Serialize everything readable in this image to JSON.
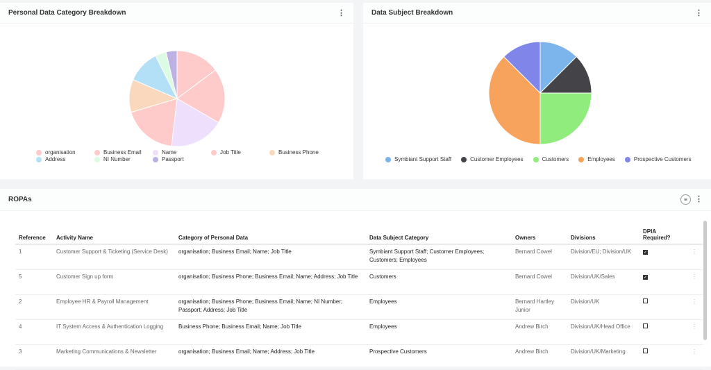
{
  "left_card": {
    "title": "Personal Data Category Breakdown"
  },
  "right_card": {
    "title": "Data Subject Breakdown"
  },
  "chart_data": [
    {
      "type": "pie",
      "title": "Personal Data Category Breakdown",
      "categories": [
        "organisation",
        "Business Email",
        "Name",
        "Job Title",
        "Business Phone",
        "Address",
        "NI Number",
        "Passport"
      ],
      "values": [
        4,
        5,
        5,
        5,
        3,
        3,
        1,
        1
      ],
      "colors": [
        "#fecaca",
        "#fecaca",
        "#eedffc",
        "#fecaca",
        "#fad8bd",
        "#b3e0f7",
        "#dcfbe3",
        "#bdb0e3"
      ],
      "legend": "bottom"
    },
    {
      "type": "pie",
      "title": "Data Subject Breakdown",
      "categories": [
        "Symbiant Support Staff",
        "Customer Employees",
        "Customers",
        "Employees",
        "Prospective Customers"
      ],
      "values": [
        1,
        1,
        2,
        3,
        1
      ],
      "colors": [
        "#7cb5ec",
        "#434348",
        "#90ed7d",
        "#f7a35c",
        "#8085e9"
      ],
      "legend": "bottom"
    }
  ],
  "ropa": {
    "title": "ROPAs",
    "columns": [
      "Reference",
      "Activity Name",
      "Category of Personal Data",
      "Data Subject Category",
      "Owners",
      "Divisions",
      "DPIA Required?"
    ],
    "rows": [
      {
        "ref": "1",
        "activity": "Customer Support & Ticketing (Service Desk)",
        "category": "organisation; Business Email; Name; Job Title",
        "subject": "Symbiant Support Staff; Customer Employees; Customers; Employees",
        "owners": "Bernard Cowel",
        "divisions": "Division/EU; Division/UK",
        "dpia": true
      },
      {
        "ref": "5",
        "activity": "Customer Sign up form",
        "category": "organisation; Business Phone; Business Email; Name; Address; Job Title",
        "subject": "Customers",
        "owners": "Bernard Cowel",
        "divisions": "Division/UK/Sales",
        "dpia": true
      },
      {
        "ref": "2",
        "activity": "Employee HR & Payroll Management",
        "category": "organisation; Business Phone; Business Email; Name; NI Number; Passport; Address; Job Title",
        "subject": "Employees",
        "owners": "Bernard Hartley Junior",
        "divisions": "Division/UK",
        "dpia": false
      },
      {
        "ref": "4",
        "activity": "IT System Access & Authentication Logging",
        "category": "Business Phone; Business Email; Name; Job Title",
        "subject": "Employees",
        "owners": "Andrew Birch",
        "divisions": "Division/UK/Head Office",
        "dpia": false
      },
      {
        "ref": "3",
        "activity": "Marketing Communications & Newsletter",
        "category": "organisation; Business Email; Name; Address; Job Title",
        "subject": "Prospective Customers",
        "owners": "Andrew Birch",
        "divisions": "Division/UK/Marketing",
        "dpia": false
      }
    ]
  }
}
